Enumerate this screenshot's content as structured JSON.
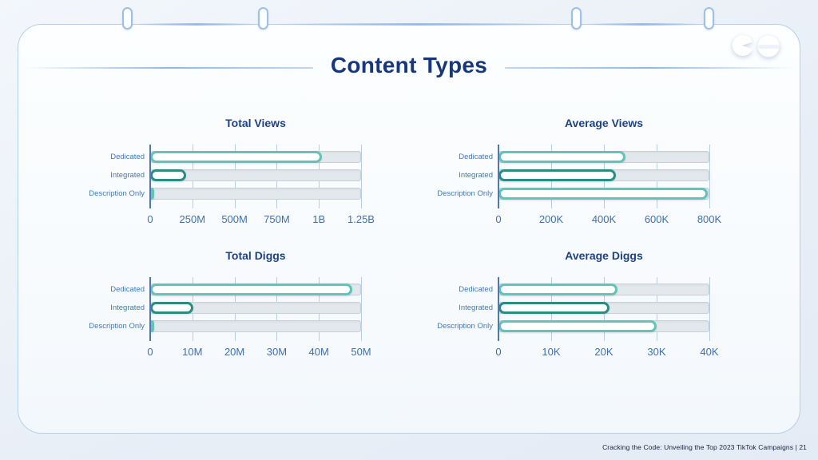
{
  "slide": {
    "title": "Content Types",
    "footer_caption": "Cracking the Code: Unveiling the Top 2023 TikTok Campaigns |  21",
    "page_number": "21"
  },
  "colors": {
    "teal_light": "#5ec5b7",
    "teal_dark": "#2b8c84",
    "axis_blue": "#4a7ab2",
    "tick_blue": "#3f70ac",
    "title_navy": "#17377c",
    "chart_title_navy": "#1d4187",
    "track_gray": "#e3e8ec"
  },
  "chart_data": [
    {
      "type": "bar",
      "orientation": "horizontal",
      "title": "Total Views",
      "categories": [
        "Dedicated",
        "Integrated",
        "Description Only"
      ],
      "values": [
        1020000000,
        213000000,
        22000000
      ],
      "xlim": [
        0,
        1250000000
      ],
      "ticks": [
        {
          "value": 0,
          "label": "0"
        },
        {
          "value": 250000000,
          "label": "250M"
        },
        {
          "value": 500000000,
          "label": "500M"
        },
        {
          "value": 750000000,
          "label": "750M"
        },
        {
          "value": 1000000000,
          "label": "1B"
        },
        {
          "value": 1250000000,
          "label": "1.25B"
        }
      ],
      "bar_colors": [
        "#5ec5b7",
        "#2b8c84",
        "#5ec5b7"
      ],
      "grid": true,
      "legend": false
    },
    {
      "type": "bar",
      "orientation": "horizontal",
      "title": "Average Views",
      "categories": [
        "Dedicated",
        "Integrated",
        "Description Only"
      ],
      "values": [
        482000,
        445000,
        795000
      ],
      "xlim": [
        0,
        800000
      ],
      "ticks": [
        {
          "value": 0,
          "label": "0"
        },
        {
          "value": 200000,
          "label": "200K"
        },
        {
          "value": 400000,
          "label": "400K"
        },
        {
          "value": 600000,
          "label": "600K"
        },
        {
          "value": 800000,
          "label": "800K"
        }
      ],
      "bar_colors": [
        "#5ec5b7",
        "#2b8c84",
        "#5ec5b7"
      ],
      "grid": true,
      "legend": false
    },
    {
      "type": "bar",
      "orientation": "horizontal",
      "title": "Total Diggs",
      "categories": [
        "Dedicated",
        "Integrated",
        "Description Only"
      ],
      "values": [
        48000000,
        10200000,
        1000000
      ],
      "xlim": [
        0,
        50000000
      ],
      "ticks": [
        {
          "value": 0,
          "label": "0"
        },
        {
          "value": 10000000,
          "label": "10M"
        },
        {
          "value": 20000000,
          "label": "20M"
        },
        {
          "value": 30000000,
          "label": "30M"
        },
        {
          "value": 40000000,
          "label": "40M"
        },
        {
          "value": 50000000,
          "label": "50M"
        }
      ],
      "bar_colors": [
        "#5ec5b7",
        "#2b8c84",
        "#5ec5b7"
      ],
      "grid": true,
      "legend": false
    },
    {
      "type": "bar",
      "orientation": "horizontal",
      "title": "Average Diggs",
      "categories": [
        "Dedicated",
        "Integrated",
        "Description Only"
      ],
      "values": [
        22500,
        21000,
        30000
      ],
      "xlim": [
        0,
        40000
      ],
      "ticks": [
        {
          "value": 0,
          "label": "0"
        },
        {
          "value": 10000,
          "label": "10K"
        },
        {
          "value": 20000,
          "label": "20K"
        },
        {
          "value": 30000,
          "label": "30K"
        },
        {
          "value": 40000,
          "label": "40K"
        }
      ],
      "bar_colors": [
        "#5ec5b7",
        "#2b8c84",
        "#5ec5b7"
      ],
      "grid": true,
      "legend": false
    }
  ]
}
